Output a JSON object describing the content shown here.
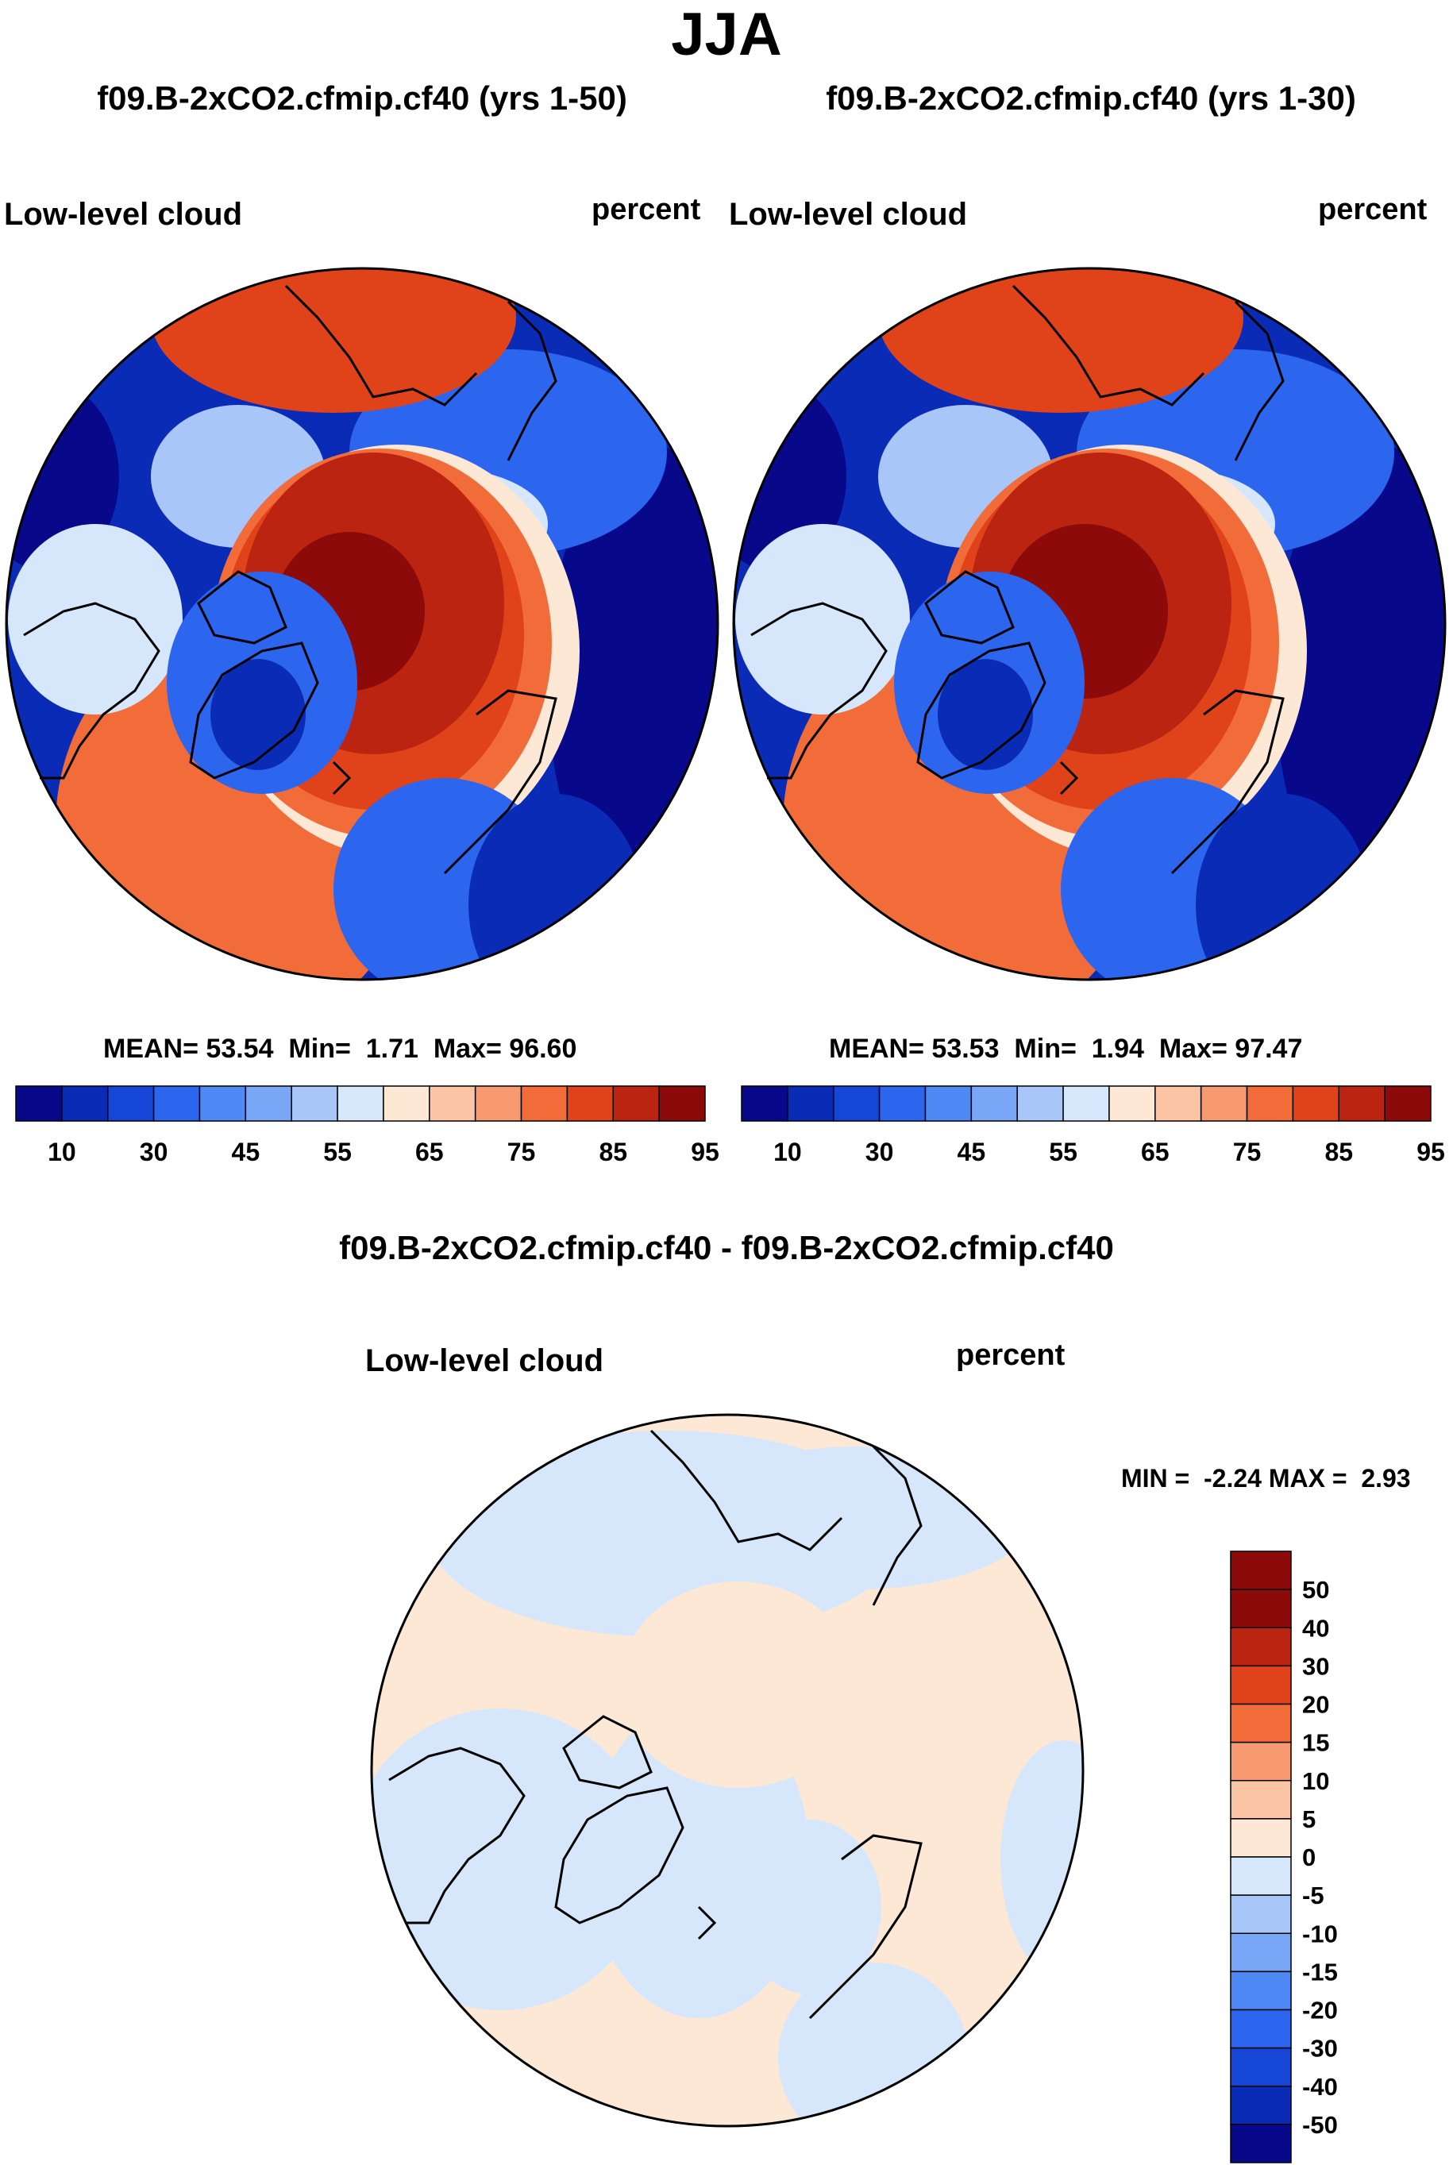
{
  "page_title": "JJA",
  "panels": [
    {
      "case_title": "f09.B-2xCO2.cfmip.cf40 (yrs 1-50)",
      "variable": "Low-level cloud",
      "units": "percent",
      "stats": {
        "mean_label": "MEAN=",
        "mean": "53.54",
        "min_label": "Min=",
        "min": "1.71",
        "max_label": "Max=",
        "max": "96.60"
      }
    },
    {
      "case_title": "f09.B-2xCO2.cfmip.cf40 (yrs 1-30)",
      "variable": "Low-level cloud",
      "units": "percent",
      "stats": {
        "mean_label": "MEAN=",
        "mean": "53.53",
        "min_label": "Min=",
        "min": "1.94",
        "max_label": "Max=",
        "max": "97.47"
      }
    }
  ],
  "diff_panel": {
    "case_title": "f09.B-2xCO2.cfmip.cf40 - f09.B-2xCO2.cfmip.cf40",
    "variable": "Low-level cloud",
    "units": "percent",
    "stats": {
      "min_label": "MIN =",
      "min": "-2.24",
      "max_label": "MAX =",
      "max": "2.93"
    }
  },
  "colorbar_main": {
    "colors": [
      "#08088a",
      "#0a2bb5",
      "#1646d6",
      "#2d66ee",
      "#4e89f5",
      "#7aa6f7",
      "#a9c6f9",
      "#d7e7fb",
      "#fde8d6",
      "#fbc4a4",
      "#f79a72",
      "#f26c3a",
      "#e0421a",
      "#bb2410",
      "#8c0a0a"
    ],
    "tick_labels": [
      "10",
      "30",
      "45",
      "55",
      "65",
      "75",
      "85",
      "95"
    ]
  },
  "colorbar_diff": {
    "colors": [
      "#08088a",
      "#0a2bb5",
      "#1646d6",
      "#2d66ee",
      "#4e89f5",
      "#7aa6f7",
      "#a9c6f9",
      "#d7e7fb",
      "#fde8d6",
      "#fbc4a4",
      "#f79a72",
      "#f26c3a",
      "#e0421a",
      "#bb2410",
      "#8c0a0a"
    ],
    "tick_labels": [
      "50",
      "40",
      "30",
      "20",
      "15",
      "10",
      "5",
      "0",
      "-5",
      "-10",
      "-15",
      "-20",
      "-30",
      "-40",
      "-50"
    ]
  },
  "map_colors": {
    "ocean_low": "#0a2bb5",
    "deep_blue": "#08088a",
    "mid_blue": "#2d66ee",
    "light_blue": "#a9c6f9",
    "pale_blue": "#d7e7fb",
    "pale_orange": "#fde8d6",
    "orange": "#f26c3a",
    "red_orange": "#e0421a",
    "dark_red": "#bb2410",
    "max_red": "#8c0a0a"
  }
}
